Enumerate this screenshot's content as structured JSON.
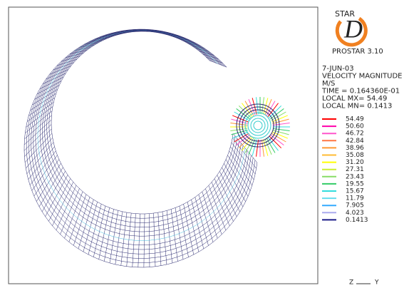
{
  "logo": {
    "top": "STAR",
    "letter": "D",
    "product": "PROSTAR 3.10"
  },
  "info": [
    "7-JUN-03",
    "VELOCITY MAGNITUDE",
    "M/S",
    "TIME = 0.164360E-01",
    "LOCAL MX=  54.49",
    "LOCAL MN= 0.1413"
  ],
  "legend": [
    {
      "label": "54.49",
      "color": "#ff0000"
    },
    {
      "label": "50.60",
      "color": "#ff00aa"
    },
    {
      "label": "46.72",
      "color": "#ff55cc"
    },
    {
      "label": "42.84",
      "color": "#ff7744"
    },
    {
      "label": "38.96",
      "color": "#ff9933"
    },
    {
      "label": "35.08",
      "color": "#ffbb33"
    },
    {
      "label": "31.20",
      "color": "#ffff00"
    },
    {
      "label": "27.31",
      "color": "#ccee33"
    },
    {
      "label": "23.43",
      "color": "#88dd66"
    },
    {
      "label": "19.55",
      "color": "#33cc66"
    },
    {
      "label": "15.67",
      "color": "#33dddd"
    },
    {
      "label": "11.79",
      "color": "#66ddee"
    },
    {
      "label": "7.905",
      "color": "#33aaff"
    },
    {
      "label": "4.023",
      "color": "#aaaaee"
    },
    {
      "label": "0.1413",
      "color": "#1a1a88"
    }
  ],
  "axes": {
    "z": "Z",
    "y": "Y"
  }
}
